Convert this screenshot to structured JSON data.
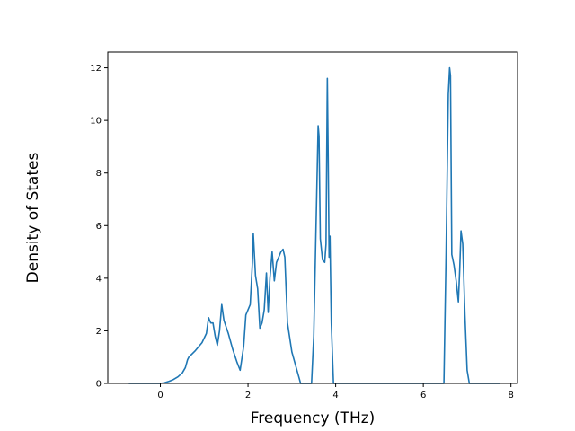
{
  "chart_data": {
    "type": "line",
    "title": "",
    "xlabel": "Frequency (THz)",
    "ylabel": "Density of States",
    "xlim": [
      -1.2,
      8.15
    ],
    "ylim": [
      0,
      12.6
    ],
    "xticks": [
      0,
      2,
      4,
      6,
      8
    ],
    "yticks": [
      0,
      2,
      4,
      6,
      8,
      10,
      12
    ],
    "grid": false,
    "legend": "none",
    "colors": {
      "line": "#1f77b4",
      "axis": "#000000",
      "background": "#ffffff"
    },
    "series": [
      {
        "x": [
          -0.72,
          0.0,
          0.1,
          0.2,
          0.3,
          0.4,
          0.5,
          0.57,
          0.62,
          0.65,
          0.8,
          0.95,
          1.05,
          1.1,
          1.15,
          1.2,
          1.25,
          1.3,
          1.35,
          1.4,
          1.45,
          1.55,
          1.65,
          1.75,
          1.82,
          1.9,
          1.95,
          2.05,
          2.1,
          2.12,
          2.17,
          2.22,
          2.27,
          2.32,
          2.37,
          2.42,
          2.46,
          2.5,
          2.55,
          2.6,
          2.65,
          2.75,
          2.8,
          2.84,
          2.9,
          3.0,
          3.1,
          3.15,
          3.2,
          3.45,
          3.5,
          3.6,
          3.62,
          3.65,
          3.7,
          3.75,
          3.78,
          3.81,
          3.83,
          3.85,
          3.87,
          3.9,
          3.95,
          4.5,
          5.5,
          6.47,
          6.52,
          6.57,
          6.6,
          6.62,
          6.65,
          6.7,
          6.75,
          6.8,
          6.83,
          6.86,
          6.9,
          6.95,
          7.0,
          7.05,
          7.1,
          7.75
        ],
        "y": [
          0,
          0.0,
          0.03,
          0.08,
          0.15,
          0.25,
          0.4,
          0.6,
          0.9,
          1.0,
          1.25,
          1.55,
          1.9,
          2.5,
          2.3,
          2.3,
          1.8,
          1.45,
          2.0,
          3.0,
          2.4,
          1.9,
          1.3,
          0.8,
          0.5,
          1.4,
          2.6,
          3.0,
          4.6,
          5.7,
          4.1,
          3.6,
          2.1,
          2.3,
          2.8,
          4.2,
          2.7,
          4.0,
          5.0,
          3.9,
          4.6,
          5.0,
          5.1,
          4.8,
          2.3,
          1.2,
          0.6,
          0.3,
          0.0,
          0.0,
          1.8,
          9.8,
          9.4,
          5.5,
          4.7,
          4.6,
          5.3,
          11.6,
          8.5,
          4.8,
          5.6,
          2.3,
          0.0,
          0.0,
          0.0,
          0.0,
          5.0,
          11.0,
          12.0,
          11.7,
          4.9,
          4.5,
          3.9,
          3.1,
          4.3,
          5.8,
          5.3,
          2.6,
          0.5,
          0.0,
          0.0,
          0.0
        ]
      }
    ]
  }
}
